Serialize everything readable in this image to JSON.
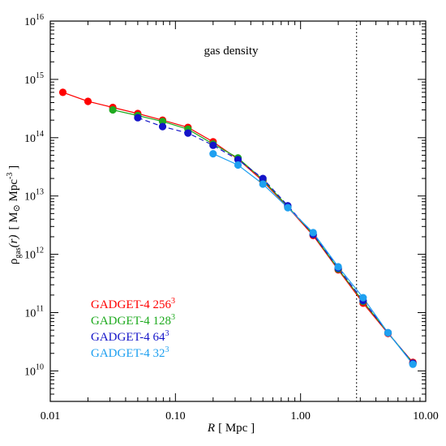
{
  "chart_data": {
    "type": "line",
    "annotation": "gas density",
    "xlabel": {
      "italic": "R",
      "rest": "[ Mpc ]"
    },
    "ylabel": {
      "main": "ρ",
      "sub": "gas",
      "paren": "(r)",
      "units_open": "[ M",
      "sun": "⊙",
      "units_mid": " Mpc",
      "units_exp": "-3",
      "units_close": " ]"
    },
    "x_scale": "log",
    "y_scale": "log",
    "xlim": [
      0.01,
      10.0
    ],
    "ylim": [
      3000000000.0,
      1e+16
    ],
    "x_ticks": [
      {
        "value": 0.01,
        "label": "0.01"
      },
      {
        "value": 0.1,
        "label": "0.10"
      },
      {
        "value": 1.0,
        "label": "1.00"
      },
      {
        "value": 10.0,
        "label": "10.00"
      }
    ],
    "y_ticks": [
      {
        "value": 10000000000.0,
        "base": "10",
        "exp": "10"
      },
      {
        "value": 100000000000.0,
        "base": "10",
        "exp": "11"
      },
      {
        "value": 1000000000000.0,
        "base": "10",
        "exp": "12"
      },
      {
        "value": 10000000000000.0,
        "base": "10",
        "exp": "13"
      },
      {
        "value": 100000000000000.0,
        "base": "10",
        "exp": "14"
      },
      {
        "value": 1000000000000000.0,
        "base": "10",
        "exp": "15"
      },
      {
        "value": 1e+16,
        "base": "10",
        "exp": "16"
      }
    ],
    "vline": {
      "x": 2.8,
      "style": "dotted"
    },
    "grid": false,
    "legend_position": "bottom-left",
    "series": [
      {
        "name": "GADGET-4  256",
        "name_exp": "3",
        "color": "#ff0000",
        "line": "solid",
        "x": [
          0.0126,
          0.02,
          0.0316,
          0.05,
          0.079,
          0.126,
          0.2,
          0.316,
          0.5,
          0.79,
          1.26,
          2.0,
          3.16,
          5.0,
          7.9
        ],
        "y": [
          600000000000000.0,
          420000000000000.0,
          330000000000000.0,
          260000000000000.0,
          200000000000000.0,
          150000000000000.0,
          85000000000000.0,
          43000000000000.0,
          18000000000000.0,
          6400000000000.0,
          2100000000000.0,
          540000000000.0,
          145000000000.0,
          44000000000.0,
          14000000000.0
        ]
      },
      {
        "name": "GADGET-4  128",
        "name_exp": "3",
        "color": "#1faa1f",
        "line": "solid",
        "x": [
          0.0316,
          0.05,
          0.079,
          0.126,
          0.2,
          0.316,
          0.5,
          0.79,
          1.26,
          2.0,
          3.16,
          5.0,
          7.9
        ],
        "y": [
          300000000000000.0,
          240000000000000.0,
          190000000000000.0,
          140000000000000.0,
          78000000000000.0,
          45000000000000.0,
          19000000000000.0,
          6600000000000.0,
          2200000000000.0,
          560000000000.0,
          155000000000.0,
          45000000000.0,
          13500000000.0
        ]
      },
      {
        "name": "GADGET-4  64",
        "name_exp": "3",
        "color": "#1414c8",
        "line": "dashed",
        "x": [
          0.05,
          0.079,
          0.126,
          0.2,
          0.316,
          0.5,
          0.79,
          1.26,
          2.0,
          3.16,
          5.0,
          7.9
        ],
        "y": [
          220000000000000.0,
          155000000000000.0,
          120000000000000.0,
          74000000000000.0,
          42000000000000.0,
          20000000000000.0,
          6800000000000.0,
          2200000000000.0,
          580000000000.0,
          160000000000.0,
          45000000000.0,
          13500000000.0
        ]
      },
      {
        "name": "GADGET-4  32",
        "name_exp": "3",
        "color": "#1ea0f0",
        "line": "solid",
        "x": [
          0.2,
          0.316,
          0.5,
          0.79,
          1.26,
          2.0,
          3.16,
          5.0,
          7.9
        ],
        "y": [
          53000000000000.0,
          34000000000000.0,
          16000000000000.0,
          6300000000000.0,
          2350000000000.0,
          610000000000.0,
          180000000000.0,
          45000000000.0,
          13000000000.0
        ]
      }
    ]
  }
}
